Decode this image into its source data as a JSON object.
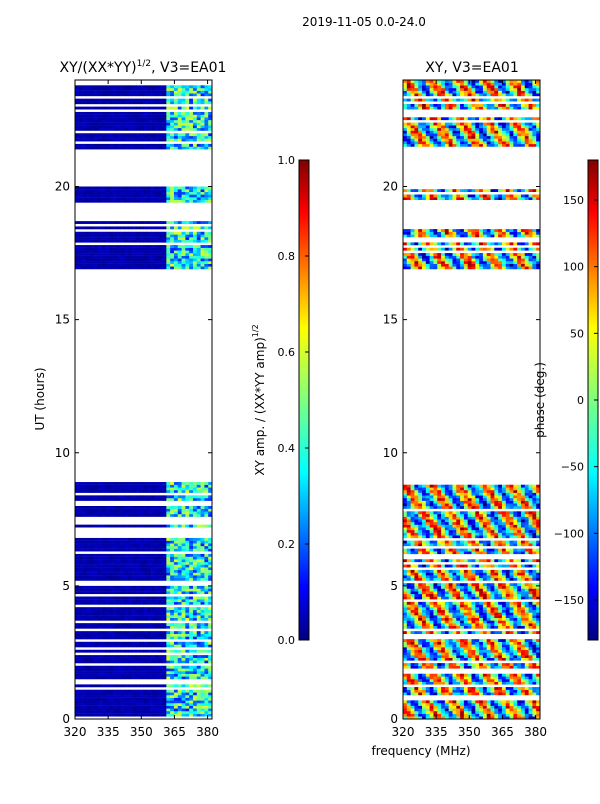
{
  "figure_title": "2019-11-05 0.0-24.0",
  "chart_data": [
    {
      "type": "heatmap",
      "title": "XY/(XX*YY)",
      "title_exponent": "1/2",
      "title_suffix": ", V3=EA01",
      "xlabel": "",
      "ylabel": "UT (hours)",
      "xlim": [
        320,
        382
      ],
      "ylim": [
        0,
        24
      ],
      "x_ticks": [
        320,
        335,
        350,
        365,
        380
      ],
      "y_ticks": [
        0,
        5,
        10,
        15,
        20
      ],
      "colorbar": {
        "label": "XY amp. / (XX*YY amp)",
        "label_exponent": "1/2",
        "range": [
          0.0,
          1.0
        ],
        "ticks": [
          "0.0",
          "0.2",
          "0.4",
          "0.6",
          "0.8",
          "1.0"
        ],
        "colormap": "jet"
      },
      "data_blocks_hours": [
        [
          0,
          8.9
        ],
        [
          16.9,
          18.7
        ],
        [
          19.4,
          20.0
        ],
        [
          21.4,
          24
        ]
      ],
      "active_band_mhz": [
        362,
        382
      ]
    },
    {
      "type": "heatmap",
      "title": "XY, V3=EA01",
      "xlabel": "frequency (MHz)",
      "ylabel": "",
      "xlim": [
        320,
        382
      ],
      "ylim": [
        0,
        24
      ],
      "x_ticks": [
        320,
        335,
        350,
        365,
        380
      ],
      "y_ticks": [
        0,
        5,
        10,
        15,
        20
      ],
      "colorbar": {
        "label": "phase (deg.)",
        "range": [
          -180,
          180
        ],
        "ticks": [
          "150",
          "100",
          "50",
          "0",
          "−50",
          "−100",
          "−150"
        ],
        "colormap": "jet"
      },
      "data_blocks_hours": [
        [
          0,
          8.9
        ],
        [
          16.9,
          18.7
        ],
        [
          19.4,
          20.0
        ],
        [
          21.4,
          24
        ]
      ]
    }
  ]
}
